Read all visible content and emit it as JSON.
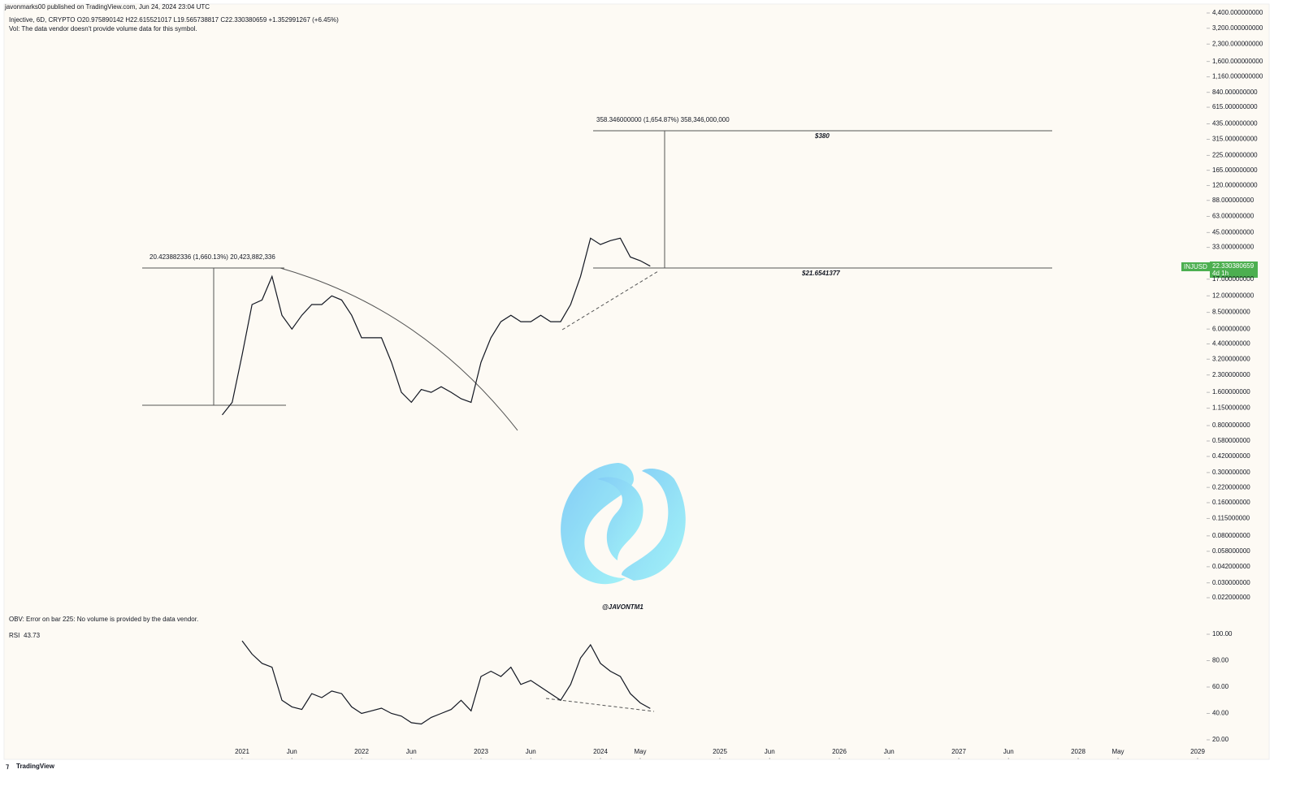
{
  "header": {
    "publisher": "javonmarks00 published on TradingView.com, Jun 24, 2024 23:04 UTC",
    "symbol": "Injective, 6D, CRYPTO  O20.975890142  H22.615521017  L19.565738817  C22.330380659  +1.352991267 (+6.45%)",
    "volume_note": "Vol: The data vendor doesn't provide volume data for this symbol."
  },
  "annotations": {
    "measure_1": "20.423882336 (1,660.13%) 20,423,882,336",
    "measure_2": "358.346000000 (1,654.87%) 358,346,000,000",
    "target": "$380",
    "support": "$21.6541377",
    "handle": "@JAVONTM1",
    "obv_note": "OBV: Error on bar 225: No volume is provided by the data vendor.",
    "price_tag": "INJUSD",
    "countdown": "4d 1h",
    "footer": "TradingView"
  },
  "chart_data": [
    {
      "type": "line",
      "log_scale": true,
      "x": [
        "2020-11",
        "2020-12",
        "2021-01",
        "2021-02",
        "2021-03",
        "2021-04",
        "2021-05",
        "2021-06",
        "2021-07",
        "2021-08",
        "2021-09",
        "2021-10",
        "2021-11",
        "2021-12",
        "2022-01",
        "2022-02",
        "2022-03",
        "2022-04",
        "2022-05",
        "2022-06",
        "2022-07",
        "2022-08",
        "2022-09",
        "2022-10",
        "2022-11",
        "2022-12",
        "2023-01",
        "2023-02",
        "2023-03",
        "2023-04",
        "2023-05",
        "2023-06",
        "2023-07",
        "2023-08",
        "2023-09",
        "2023-10",
        "2023-11",
        "2023-12",
        "2024-01",
        "2024-02",
        "2024-03",
        "2024-04",
        "2024-05",
        "2024-06"
      ],
      "series": [
        {
          "name": "INJUSD",
          "color": "#131722",
          "values": [
            1.0,
            1.3,
            3.5,
            10,
            11,
            18,
            8,
            6,
            8,
            10,
            10,
            12,
            11,
            8,
            5,
            5,
            5,
            3,
            1.6,
            1.3,
            1.7,
            1.6,
            1.8,
            1.6,
            1.4,
            1.3,
            3,
            5,
            7,
            8,
            7,
            7,
            8,
            7,
            7,
            10,
            18,
            40,
            35,
            38,
            40,
            27,
            25,
            22.330380659
          ]
        }
      ],
      "ylim": [
        0.022,
        4400
      ],
      "yticks": [
        {
          "value": 4400,
          "label": "4,400.000000000"
        },
        {
          "value": 3200,
          "label": "3,200.000000000"
        },
        {
          "value": 2300,
          "label": "2,300.000000000"
        },
        {
          "value": 1600,
          "label": "1,600.000000000"
        },
        {
          "value": 1160,
          "label": "1,160.000000000"
        },
        {
          "value": 840,
          "label": "840.000000000"
        },
        {
          "value": 615,
          "label": "615.000000000"
        },
        {
          "value": 435,
          "label": "435.000000000"
        },
        {
          "value": 315,
          "label": "315.000000000"
        },
        {
          "value": 225,
          "label": "225.000000000"
        },
        {
          "value": 165,
          "label": "165.000000000"
        },
        {
          "value": 120,
          "label": "120.000000000"
        },
        {
          "value": 88,
          "label": "88.000000000"
        },
        {
          "value": 63,
          "label": "63.000000000"
        },
        {
          "value": 45,
          "label": "45.000000000"
        },
        {
          "value": 33,
          "label": "33.000000000"
        },
        {
          "value": 17,
          "label": "17.000000000"
        },
        {
          "value": 12,
          "label": "12.000000000"
        },
        {
          "value": 8.5,
          "label": "8.500000000"
        },
        {
          "value": 6,
          "label": "6.000000000"
        },
        {
          "value": 4.4,
          "label": "4.400000000"
        },
        {
          "value": 3.2,
          "label": "3.200000000"
        },
        {
          "value": 2.3,
          "label": "2.300000000"
        },
        {
          "value": 1.6,
          "label": "1.600000000"
        },
        {
          "value": 1.15,
          "label": "1.150000000"
        },
        {
          "value": 0.8,
          "label": "0.800000000"
        },
        {
          "value": 0.58,
          "label": "0.580000000"
        },
        {
          "value": 0.42,
          "label": "0.420000000"
        },
        {
          "value": 0.3,
          "label": "0.300000000"
        },
        {
          "value": 0.22,
          "label": "0.220000000"
        },
        {
          "value": 0.16,
          "label": "0.160000000"
        },
        {
          "value": 0.115,
          "label": "0.115000000"
        },
        {
          "value": 0.08,
          "label": "0.080000000"
        },
        {
          "value": 0.058,
          "label": "0.058000000"
        },
        {
          "value": 0.042,
          "label": "0.042000000"
        },
        {
          "value": 0.03,
          "label": "0.030000000"
        },
        {
          "value": 0.022,
          "label": "0.022000000"
        }
      ],
      "xticks": [
        {
          "value": "2021-01",
          "label": "2021"
        },
        {
          "value": "2021-06",
          "label": "Jun"
        },
        {
          "value": "2022-01",
          "label": "2022"
        },
        {
          "value": "2022-06",
          "label": "Jun"
        },
        {
          "value": "2023-01",
          "label": "2023"
        },
        {
          "value": "2023-06",
          "label": "Jun"
        },
        {
          "value": "2024-01",
          "label": "2024"
        },
        {
          "value": "2024-05",
          "label": "May"
        },
        {
          "value": "2025-01",
          "label": "2025"
        },
        {
          "value": "2025-06",
          "label": "Jun"
        },
        {
          "value": "2026-01",
          "label": "2026"
        },
        {
          "value": "2026-06",
          "label": "Jun"
        },
        {
          "value": "2027-01",
          "label": "2027"
        },
        {
          "value": "2027-06",
          "label": "Jun"
        },
        {
          "value": "2028-01",
          "label": "2028"
        },
        {
          "value": "2028-05",
          "label": "May"
        },
        {
          "value": "2029-01",
          "label": "2029"
        }
      ]
    },
    {
      "type": "line",
      "title": "RSI",
      "x": [
        "2021-01",
        "2021-02",
        "2021-03",
        "2021-04",
        "2021-05",
        "2021-06",
        "2021-07",
        "2021-08",
        "2021-09",
        "2021-10",
        "2021-11",
        "2021-12",
        "2022-01",
        "2022-02",
        "2022-03",
        "2022-04",
        "2022-05",
        "2022-06",
        "2022-07",
        "2022-08",
        "2022-09",
        "2022-10",
        "2022-11",
        "2022-12",
        "2023-01",
        "2023-02",
        "2023-03",
        "2023-04",
        "2023-05",
        "2023-06",
        "2023-07",
        "2023-08",
        "2023-09",
        "2023-10",
        "2023-11",
        "2023-12",
        "2024-01",
        "2024-02",
        "2024-03",
        "2024-04",
        "2024-05",
        "2024-06"
      ],
      "series": [
        {
          "name": "RSI",
          "color": "#131722",
          "values": [
            95,
            85,
            78,
            75,
            50,
            45,
            43,
            55,
            52,
            57,
            55,
            45,
            40,
            42,
            44,
            40,
            38,
            33,
            32,
            37,
            40,
            43,
            50,
            42,
            68,
            72,
            68,
            75,
            62,
            65,
            60,
            55,
            50,
            62,
            82,
            92,
            78,
            72,
            68,
            55,
            48,
            43.73
          ]
        }
      ],
      "ylim": [
        20,
        100
      ],
      "yticks": [
        {
          "value": 100,
          "label": "100.00"
        },
        {
          "value": 80,
          "label": "80.00"
        },
        {
          "value": 60,
          "label": "60.00"
        },
        {
          "value": 40,
          "label": "40.00"
        },
        {
          "value": 20,
          "label": "20.00"
        }
      ]
    }
  ]
}
